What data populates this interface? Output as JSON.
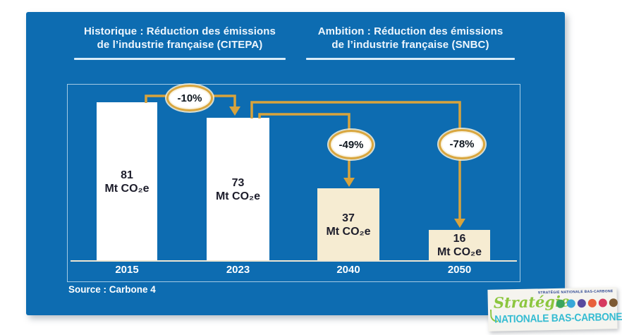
{
  "slide": {
    "header_left": {
      "line1": "Historique : Réduction des émissions",
      "line2": "de l’industrie française (CITEPA)"
    },
    "header_right": {
      "line1": "Ambition : Réduction des émissions",
      "line2": "de l’industrie française (SNBC)"
    },
    "source": "Source : Carbone 4"
  },
  "chart_data": {
    "type": "bar",
    "title_left": "Historique : Réduction des émissions de l’industrie française (CITEPA)",
    "title_right": "Ambition : Réduction des émissions de l’industrie française (SNBC)",
    "categories": [
      "2015",
      "2023",
      "2040",
      "2050"
    ],
    "values": [
      81,
      73,
      37,
      16
    ],
    "unit": "Mt CO₂e",
    "ylim": [
      0,
      85
    ],
    "grid": false,
    "bar_colors": [
      "#ffffff",
      "#ffffff",
      "#f6ecd2",
      "#f6ecd2"
    ],
    "annotations": [
      {
        "label": "-10%",
        "from": "2015",
        "to": "2023"
      },
      {
        "label": "-49%",
        "from": "2023",
        "to": "2040"
      },
      {
        "label": "-78%",
        "from": "2023",
        "to": "2050"
      }
    ],
    "arrow_color": "#d8a33c",
    "background": "#0d6cb1"
  },
  "logo": {
    "small_caps": "STRATÉGIE NATIONALE BAS-CARBONE",
    "script_word": "Stratégie",
    "wordmark": "NATIONALE BAS-CARBONE",
    "dot_colors": [
      "#3ba55d",
      "#38a8d8",
      "#584a9f",
      "#e8613c",
      "#d63a5f",
      "#7d5a33"
    ]
  }
}
